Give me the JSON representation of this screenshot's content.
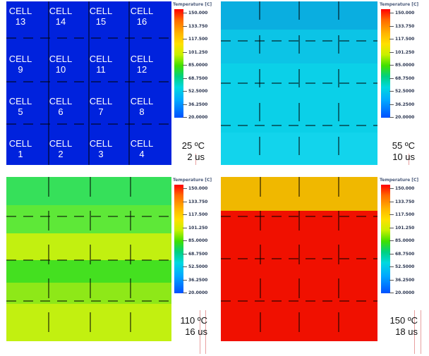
{
  "legend": {
    "title": "Temperature [C]",
    "ticks": [
      "150.000",
      "133.750",
      "117.500",
      "101.250",
      "85.0000",
      "68.7500",
      "52.5000",
      "36.2500",
      "20.0000"
    ]
  },
  "panels": [
    {
      "temperature": "25 ºC",
      "time": "2 us",
      "cells": [
        [
          "CELL",
          "13"
        ],
        [
          "CELL",
          "14"
        ],
        [
          "CELL",
          "15"
        ],
        [
          "CELL",
          "16"
        ],
        [
          "CELL",
          "9"
        ],
        [
          "CELL",
          "10"
        ],
        [
          "CELL",
          "11"
        ],
        [
          "CELL",
          "12"
        ],
        [
          "CELL",
          "5"
        ],
        [
          "CELL",
          "6"
        ],
        [
          "CELL",
          "7"
        ],
        [
          "CELL",
          "8"
        ],
        [
          "CELL",
          "1"
        ],
        [
          "CELL",
          "2"
        ],
        [
          "CELL",
          "3"
        ],
        [
          "CELL",
          "4"
        ]
      ]
    },
    {
      "temperature": "55 ºC",
      "time": "10 us"
    },
    {
      "temperature": "110 ºC",
      "time": "16 us"
    },
    {
      "temperature": "150 ºC",
      "time": "18 us"
    }
  ],
  "colors": {
    "p1": "#0022dd",
    "p2_top": "#0aaee0",
    "p2": "#0bd0e8",
    "p3a": "#36e05a",
    "p3b": "#c2f010",
    "p4top": "#f0b800",
    "p4": "#f01000"
  }
}
